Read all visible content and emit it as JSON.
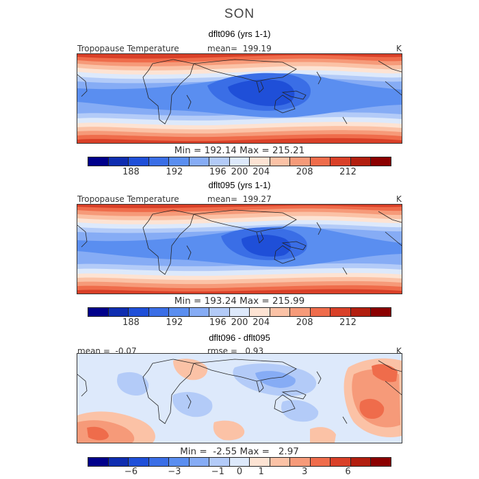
{
  "figure": {
    "season": "SON",
    "variable": "Tropopause Temperature",
    "units": "K"
  },
  "panels": [
    {
      "title": "dflt096 (yrs 1-1)",
      "left_label": "Tropopause Temperature",
      "center_label": "mean=  199.19",
      "right_label": "K",
      "min_max": "Min = 192.14 Max = 215.21",
      "colorbar_ticks": [
        "188",
        "192",
        "196",
        "200",
        "204",
        "208",
        "212"
      ]
    },
    {
      "title": "dflt095 (yrs 1-1)",
      "left_label": "Tropopause Temperature",
      "center_label": "mean=  199.27",
      "right_label": "K",
      "min_max": "Min = 193.24 Max = 215.99",
      "colorbar_ticks": [
        "188",
        "192",
        "196",
        "200",
        "204",
        "208",
        "212"
      ]
    },
    {
      "title": "dflt096 - dflt095",
      "left_label": "mean =  -0.07",
      "center_label": "rmse =   0.93",
      "right_label": "K",
      "min_max": "Min =  -2.55 Max =   2.97",
      "colorbar_ticks": [
        "−6",
        "−3",
        "−1",
        "0",
        "1",
        "3",
        "6"
      ]
    }
  ],
  "colors": {
    "scale": [
      "#00008b",
      "#0f2db0",
      "#1f4fd8",
      "#3a6ee6",
      "#5a8ef0",
      "#86acf5",
      "#b3cbf8",
      "#dde9fb",
      "#fde3d3",
      "#fbc2a6",
      "#f69a79",
      "#ef6c4b",
      "#d94028",
      "#b21e0f",
      "#8b0000"
    ]
  }
}
